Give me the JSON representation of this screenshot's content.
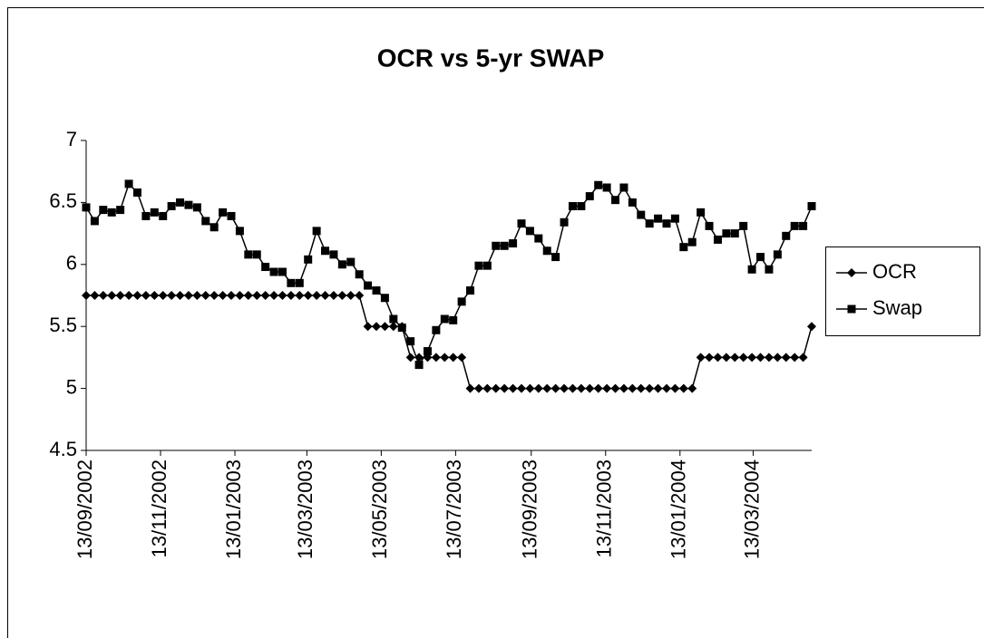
{
  "chart_data": {
    "type": "line",
    "title": "OCR vs 5-yr SWAP",
    "x": [
      "2002-09-13",
      "2002-09-20",
      "2002-09-27",
      "2002-10-04",
      "2002-10-11",
      "2002-10-18",
      "2002-10-25",
      "2002-11-01",
      "2002-11-08",
      "2002-11-15",
      "2002-11-22",
      "2002-11-29",
      "2002-12-06",
      "2002-12-13",
      "2002-12-20",
      "2002-12-27",
      "2003-01-03",
      "2003-01-10",
      "2003-01-17",
      "2003-01-24",
      "2003-01-31",
      "2003-02-07",
      "2003-02-14",
      "2003-02-21",
      "2003-02-28",
      "2003-03-07",
      "2003-03-14",
      "2003-03-21",
      "2003-03-28",
      "2003-04-04",
      "2003-04-11",
      "2003-04-18",
      "2003-04-25",
      "2003-05-02",
      "2003-05-09",
      "2003-05-16",
      "2003-05-23",
      "2003-05-30",
      "2003-06-06",
      "2003-06-13",
      "2003-06-20",
      "2003-06-27",
      "2003-07-04",
      "2003-07-11",
      "2003-07-18",
      "2003-07-25",
      "2003-08-01",
      "2003-08-08",
      "2003-08-15",
      "2003-08-22",
      "2003-08-29",
      "2003-09-05",
      "2003-09-12",
      "2003-09-19",
      "2003-09-26",
      "2003-10-03",
      "2003-10-10",
      "2003-10-17",
      "2003-10-24",
      "2003-10-31",
      "2003-11-07",
      "2003-11-14",
      "2003-11-21",
      "2003-11-28",
      "2003-12-05",
      "2003-12-12",
      "2003-12-19",
      "2003-12-26",
      "2004-01-02",
      "2004-01-09",
      "2004-01-16",
      "2004-01-23",
      "2004-01-30",
      "2004-02-06",
      "2004-02-13",
      "2004-02-20",
      "2004-02-27",
      "2004-03-05",
      "2004-03-12",
      "2004-03-19",
      "2004-03-26",
      "2004-04-02",
      "2004-04-09",
      "2004-04-16",
      "2004-04-23",
      "2004-04-30"
    ],
    "series": [
      {
        "name": "OCR",
        "color": "#000000",
        "marker": "diamond",
        "values": [
          5.75,
          5.75,
          5.75,
          5.75,
          5.75,
          5.75,
          5.75,
          5.75,
          5.75,
          5.75,
          5.75,
          5.75,
          5.75,
          5.75,
          5.75,
          5.75,
          5.75,
          5.75,
          5.75,
          5.75,
          5.75,
          5.75,
          5.75,
          5.75,
          5.75,
          5.75,
          5.75,
          5.75,
          5.75,
          5.75,
          5.75,
          5.75,
          5.75,
          5.5,
          5.5,
          5.5,
          5.5,
          5.5,
          5.25,
          5.25,
          5.25,
          5.25,
          5.25,
          5.25,
          5.25,
          5,
          5,
          5,
          5,
          5,
          5,
          5,
          5,
          5,
          5,
          5,
          5,
          5,
          5,
          5,
          5,
          5,
          5,
          5,
          5,
          5,
          5,
          5,
          5,
          5,
          5,
          5,
          5.25,
          5.25,
          5.25,
          5.25,
          5.25,
          5.25,
          5.25,
          5.25,
          5.25,
          5.25,
          5.25,
          5.25,
          5.25,
          5.5
        ]
      },
      {
        "name": "Swap",
        "color": "#000000",
        "marker": "square",
        "values": [
          6.46,
          6.35,
          6.44,
          6.42,
          6.44,
          6.65,
          6.58,
          6.39,
          6.42,
          6.39,
          6.47,
          6.5,
          6.48,
          6.46,
          6.35,
          6.3,
          6.42,
          6.39,
          6.27,
          6.08,
          6.08,
          5.98,
          5.94,
          5.94,
          5.85,
          5.85,
          6.04,
          6.27,
          6.11,
          6.08,
          6,
          6.02,
          5.92,
          5.83,
          5.79,
          5.73,
          5.56,
          5.49,
          5.38,
          5.19,
          5.3,
          5.47,
          5.56,
          5.55,
          5.7,
          5.79,
          5.99,
          5.99,
          6.15,
          6.15,
          6.17,
          6.33,
          6.27,
          6.21,
          6.11,
          6.06,
          6.34,
          6.47,
          6.47,
          6.55,
          6.64,
          6.62,
          6.52,
          6.62,
          6.5,
          6.4,
          6.33,
          6.37,
          6.33,
          6.37,
          6.14,
          6.18,
          6.42,
          6.31,
          6.2,
          6.25,
          6.25,
          6.31,
          5.96,
          6.06,
          5.96,
          6.08,
          6.23,
          6.31,
          6.31,
          6.47
        ]
      }
    ],
    "xlim": [
      "2002-09-13",
      "2004-04-30"
    ],
    "xticks": [
      {
        "value": "2002-09-13",
        "label": "13/09/2002"
      },
      {
        "value": "2002-11-13",
        "label": "13/11/2002"
      },
      {
        "value": "2003-01-13",
        "label": "13/01/2003"
      },
      {
        "value": "2003-03-13",
        "label": "13/03/2003"
      },
      {
        "value": "2003-05-13",
        "label": "13/05/2003"
      },
      {
        "value": "2003-07-13",
        "label": "13/07/2003"
      },
      {
        "value": "2003-09-13",
        "label": "13/09/2003"
      },
      {
        "value": "2003-11-13",
        "label": "13/11/2003"
      },
      {
        "value": "2004-01-13",
        "label": "13/01/2004"
      },
      {
        "value": "2004-03-13",
        "label": "13/03/2004"
      }
    ],
    "ylim": [
      4.5,
      7
    ],
    "yticks": [
      4.5,
      5,
      5.5,
      6,
      6.5,
      7
    ],
    "legend": "right"
  }
}
